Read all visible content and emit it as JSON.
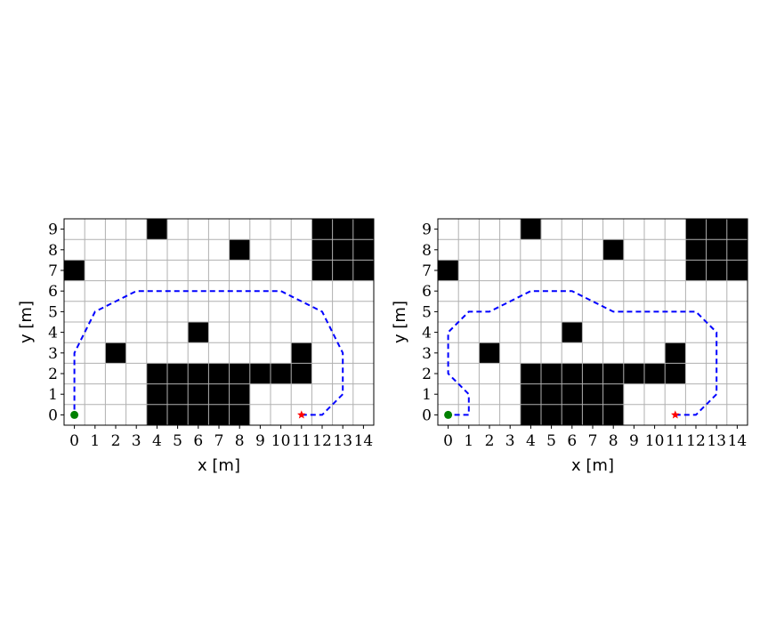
{
  "chart_data": [
    {
      "type": "grid-path",
      "xlabel": "x [m]",
      "ylabel": "y [m]",
      "xlim": [
        -0.5,
        14.5
      ],
      "ylim": [
        -0.5,
        9.5
      ],
      "x_ticks": [
        0,
        1,
        2,
        3,
        4,
        5,
        6,
        7,
        8,
        9,
        10,
        11,
        12,
        13,
        14
      ],
      "y_ticks": [
        0,
        1,
        2,
        3,
        4,
        5,
        6,
        7,
        8,
        9
      ],
      "grid": true,
      "obstacles": [
        [
          4,
          9
        ],
        [
          8,
          8
        ],
        [
          0,
          7
        ],
        [
          12,
          9
        ],
        [
          13,
          9
        ],
        [
          14,
          9
        ],
        [
          12,
          8
        ],
        [
          13,
          8
        ],
        [
          14,
          8
        ],
        [
          12,
          7
        ],
        [
          13,
          7
        ],
        [
          14,
          7
        ],
        [
          6,
          4
        ],
        [
          2,
          3
        ],
        [
          11,
          3
        ],
        [
          4,
          2
        ],
        [
          5,
          2
        ],
        [
          6,
          2
        ],
        [
          7,
          2
        ],
        [
          8,
          2
        ],
        [
          9,
          2
        ],
        [
          10,
          2
        ],
        [
          11,
          2
        ],
        [
          4,
          1
        ],
        [
          5,
          1
        ],
        [
          6,
          1
        ],
        [
          7,
          1
        ],
        [
          8,
          1
        ],
        [
          4,
          0
        ],
        [
          5,
          0
        ],
        [
          6,
          0
        ],
        [
          7,
          0
        ],
        [
          8,
          0
        ]
      ],
      "start": [
        0,
        0
      ],
      "goal": [
        11,
        0
      ],
      "path": [
        [
          11,
          0
        ],
        [
          12,
          0
        ],
        [
          13,
          1
        ],
        [
          13,
          3
        ],
        [
          12,
          5
        ],
        [
          10,
          6
        ],
        [
          3,
          6
        ],
        [
          1,
          5
        ],
        [
          0,
          3
        ],
        [
          0,
          0
        ]
      ],
      "colors": {
        "obstacle": "#000000",
        "grid": "#b0b0b0",
        "path": "#0000ff",
        "start": "#008000",
        "goal": "#ff0000"
      }
    },
    {
      "type": "grid-path",
      "xlabel": "x [m]",
      "ylabel": "y [m]",
      "xlim": [
        -0.5,
        14.5
      ],
      "ylim": [
        -0.5,
        9.5
      ],
      "x_ticks": [
        0,
        1,
        2,
        3,
        4,
        5,
        6,
        7,
        8,
        9,
        10,
        11,
        12,
        13,
        14
      ],
      "y_ticks": [
        0,
        1,
        2,
        3,
        4,
        5,
        6,
        7,
        8,
        9
      ],
      "grid": true,
      "obstacles": [
        [
          4,
          9
        ],
        [
          8,
          8
        ],
        [
          0,
          7
        ],
        [
          12,
          9
        ],
        [
          13,
          9
        ],
        [
          14,
          9
        ],
        [
          12,
          8
        ],
        [
          13,
          8
        ],
        [
          14,
          8
        ],
        [
          12,
          7
        ],
        [
          13,
          7
        ],
        [
          14,
          7
        ],
        [
          6,
          4
        ],
        [
          2,
          3
        ],
        [
          11,
          3
        ],
        [
          4,
          2
        ],
        [
          5,
          2
        ],
        [
          6,
          2
        ],
        [
          7,
          2
        ],
        [
          8,
          2
        ],
        [
          9,
          2
        ],
        [
          10,
          2
        ],
        [
          11,
          2
        ],
        [
          4,
          1
        ],
        [
          5,
          1
        ],
        [
          6,
          1
        ],
        [
          7,
          1
        ],
        [
          8,
          1
        ],
        [
          4,
          0
        ],
        [
          5,
          0
        ],
        [
          6,
          0
        ],
        [
          7,
          0
        ],
        [
          8,
          0
        ]
      ],
      "start": [
        0,
        0
      ],
      "goal": [
        11,
        0
      ],
      "path": [
        [
          11,
          0
        ],
        [
          12,
          0
        ],
        [
          13,
          1
        ],
        [
          13,
          4
        ],
        [
          12,
          5
        ],
        [
          8,
          5
        ],
        [
          6,
          6
        ],
        [
          4,
          6
        ],
        [
          2,
          5
        ],
        [
          1,
          5
        ],
        [
          0,
          4
        ],
        [
          0,
          2
        ],
        [
          1,
          1
        ],
        [
          1,
          0
        ],
        [
          0,
          0
        ]
      ],
      "colors": {
        "obstacle": "#000000",
        "grid": "#b0b0b0",
        "path": "#0000ff",
        "start": "#008000",
        "goal": "#ff0000"
      }
    }
  ]
}
